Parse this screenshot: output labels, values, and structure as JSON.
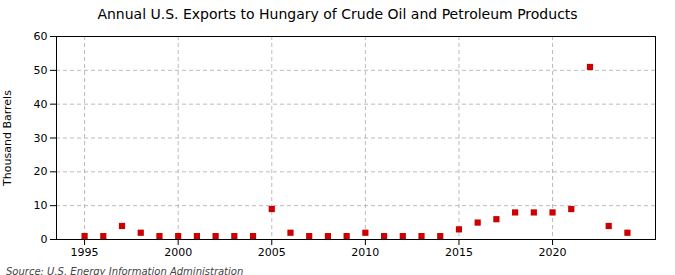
{
  "chart_data": {
    "type": "scatter",
    "title": "Annual U.S. Exports to Hungary of Crude Oil and Petroleum Products",
    "ylabel": "Thousand Barrels",
    "source": "Source: U.S. Energy Information Administration",
    "x": [
      1995,
      1996,
      1997,
      1998,
      1999,
      2000,
      2001,
      2002,
      2003,
      2004,
      2005,
      2006,
      2007,
      2008,
      2009,
      2010,
      2011,
      2012,
      2013,
      2014,
      2015,
      2016,
      2017,
      2018,
      2019,
      2020,
      2021,
      2022,
      2023,
      2024
    ],
    "values": [
      1,
      1,
      4,
      2,
      1,
      1,
      1,
      1,
      1,
      1,
      9,
      2,
      1,
      1,
      1,
      2,
      1,
      1,
      1,
      1,
      3,
      5,
      6,
      8,
      8,
      8,
      9,
      51,
      4,
      2
    ],
    "color": "#cc0000",
    "marker": "square",
    "xlim": [
      1993.5,
      2025.5
    ],
    "xticks": [
      1995,
      2000,
      2005,
      2010,
      2015,
      2020
    ],
    "ylim": [
      0,
      60
    ],
    "yticks": [
      0,
      10,
      20,
      30,
      40,
      50,
      60
    ],
    "grid": true
  }
}
